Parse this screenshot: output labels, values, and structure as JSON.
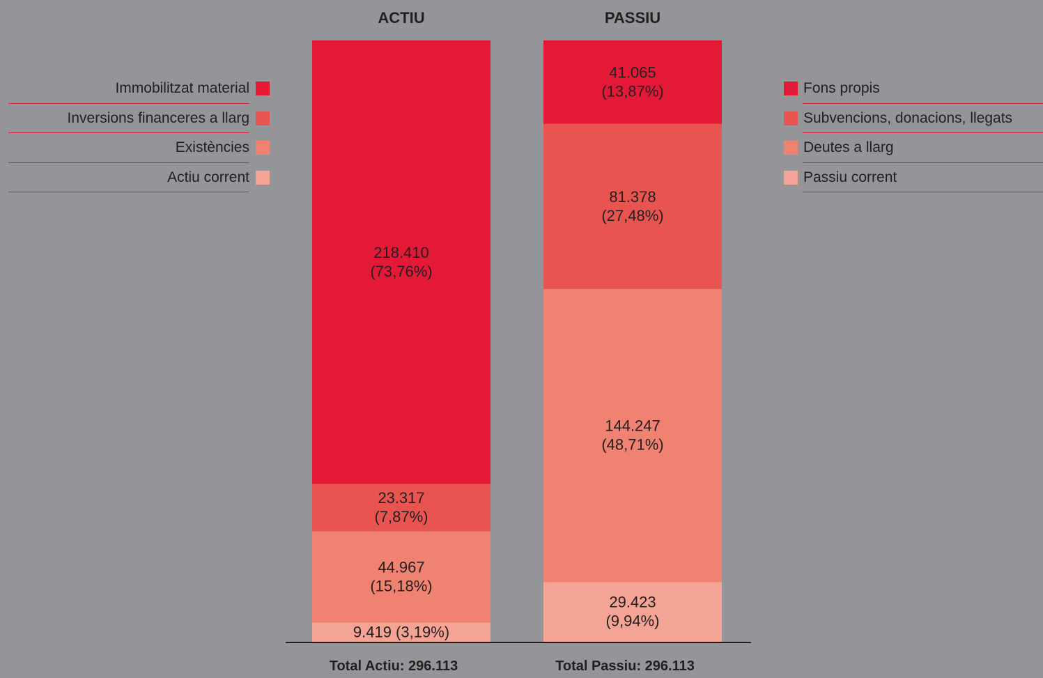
{
  "chart_data": {
    "type": "bar",
    "stacked": true,
    "categories": [
      "ACTIU",
      "PASSIU"
    ],
    "series": [
      {
        "category": "ACTIU",
        "total_label": "Total Actiu: 296.113",
        "total": 296113,
        "segments": [
          {
            "legend": "Immobilitzat material",
            "value": 218410,
            "label_lines": [
              "218.410",
              "(73,76%)"
            ],
            "color": "#e41937"
          },
          {
            "legend": "Inversions financeres a llarg",
            "value": 23317,
            "label_lines": [
              "23.317",
              "(7,87%)"
            ],
            "color": "#e85550"
          },
          {
            "legend": "Existències",
            "value": 44967,
            "label_lines": [
              "44.967",
              "(15,18%)"
            ],
            "color": "#ef8270"
          },
          {
            "legend": "Actiu corrent",
            "value": 9419,
            "label_lines": [
              "9.419 (3,19%)"
            ],
            "color": "#f4a494"
          }
        ]
      },
      {
        "category": "PASSIU",
        "total_label": "Total Passiu: 296.113",
        "total": 296113,
        "segments": [
          {
            "legend": "Fons propis",
            "value": 41065,
            "label_lines": [
              "41.065",
              "(13,87%)"
            ],
            "color": "#e41937"
          },
          {
            "legend": "Subvencions, donacions, llegats",
            "value": 81378,
            "label_lines": [
              "81.378",
              "(27,48%)"
            ],
            "color": "#e85550"
          },
          {
            "legend": "Deutes a llarg",
            "value": 144247,
            "label_lines": [
              "144.247",
              "(48,71%)"
            ],
            "color": "#ef8270"
          },
          {
            "legend": "Passiu corrent",
            "value": 29423,
            "label_lines": [
              "29.423",
              "(9,94%)"
            ],
            "color": "#f4a494"
          }
        ]
      }
    ],
    "legend_left_placement": "left",
    "legend_right_placement": "right",
    "background": "#939598",
    "grid": false
  },
  "legend_left": [
    {
      "label": "Immobilitzat material",
      "color": "#e41937"
    },
    {
      "label": "Inversions financeres a llarg",
      "color": "#e85550"
    },
    {
      "label": "Existències",
      "color": "#ef8270"
    },
    {
      "label": "Actiu corrent",
      "color": "#f4a494"
    }
  ],
  "legend_right": [
    {
      "label": "Fons propis",
      "color": "#e41937"
    },
    {
      "label": "Subvencions, donacions, llegats",
      "color": "#e85550"
    },
    {
      "label": "Deutes a llarg",
      "color": "#ef8270"
    },
    {
      "label": "Passiu corrent",
      "color": "#f4a494"
    }
  ]
}
